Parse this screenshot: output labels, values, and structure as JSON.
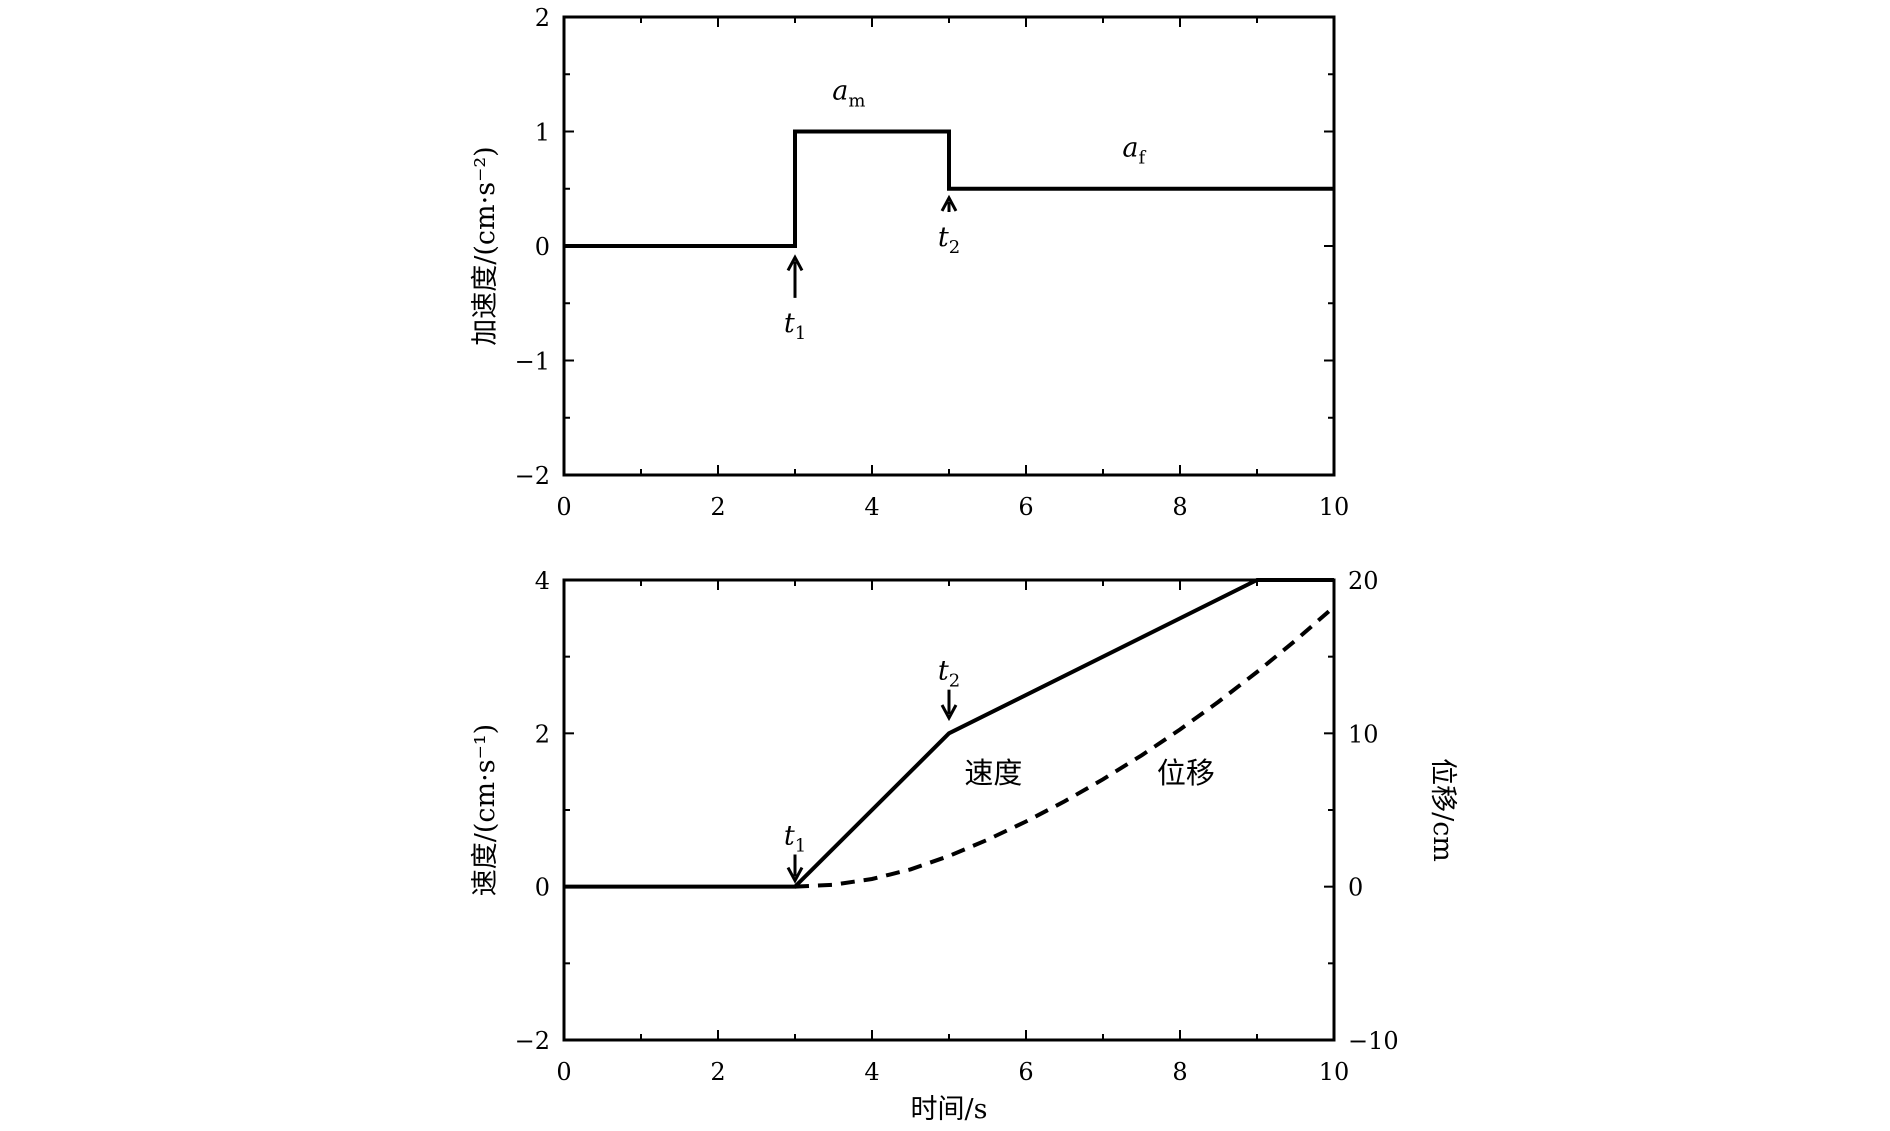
{
  "chart_data": [
    {
      "type": "line",
      "title": "",
      "xlabel": "",
      "ylabel": "加速度/(cm·s⁻²)",
      "xlim": [
        0,
        10
      ],
      "ylim": [
        -2,
        2
      ],
      "x_ticks": [
        "0",
        "2",
        "4",
        "6",
        "8",
        "10"
      ],
      "y_ticks": [
        "−2",
        "−1",
        "0",
        "1",
        "2"
      ],
      "series": [
        {
          "style": "solid",
          "x": [
            0,
            3,
            3,
            5,
            5,
            10
          ],
          "y": [
            0,
            0,
            1,
            1,
            0.5,
            0.5
          ]
        }
      ],
      "annotations": [
        {
          "text": "a",
          "sub": "m",
          "x": 3.7,
          "y": 1.28
        },
        {
          "text": "a",
          "sub": "f",
          "x": 7.4,
          "y": 0.78
        },
        {
          "text": "t",
          "sub": "1",
          "x": 3.0,
          "y": -0.75,
          "arrow_to": [
            3.0,
            -0.1
          ]
        },
        {
          "text": "t",
          "sub": "2",
          "x": 5.0,
          "y": 0.0,
          "arrow_to": [
            5.0,
            0.42
          ]
        }
      ]
    },
    {
      "type": "line",
      "title": "",
      "xlabel": "时间/s",
      "ylabel": "速度/(cm·s⁻¹)",
      "y2label": "位移/cm",
      "xlim": [
        0,
        10
      ],
      "ylim": [
        -2,
        4
      ],
      "y2lim": [
        -10,
        20
      ],
      "x_ticks": [
        "0",
        "2",
        "4",
        "6",
        "8",
        "10"
      ],
      "y_ticks": [
        "−2",
        "0",
        "2",
        "4"
      ],
      "y2_ticks": [
        "−10",
        "0",
        "10",
        "20"
      ],
      "series": [
        {
          "name": "速度",
          "style": "solid",
          "axis": "left",
          "x": [
            0,
            3,
            5,
            9,
            10
          ],
          "y": [
            0,
            0,
            2,
            4,
            4
          ]
        },
        {
          "name": "位移",
          "style": "dashed",
          "axis": "right",
          "x": [
            3,
            3.5,
            4,
            4.5,
            5,
            5.5,
            6,
            6.5,
            7,
            7.5,
            8,
            8.5,
            9,
            9.5,
            10
          ],
          "y": [
            0,
            0.125,
            0.5,
            1.125,
            2,
            3.06,
            4.25,
            5.56,
            7,
            8.56,
            10.25,
            12.06,
            14,
            16.06,
            18.25
          ]
        }
      ],
      "annotations": [
        {
          "text": "t",
          "sub": "1",
          "x": 3.0,
          "y": 0.55,
          "arrow_to": [
            3.0,
            0.08
          ]
        },
        {
          "text": "t",
          "sub": "2",
          "x": 5.0,
          "y": 2.7,
          "arrow_to": [
            5.0,
            2.2
          ]
        }
      ],
      "series_labels": [
        {
          "text": "速度",
          "x": 5.2,
          "y": 1.35
        },
        {
          "text": "位移",
          "x": 7.7,
          "y": 1.35
        }
      ]
    }
  ]
}
